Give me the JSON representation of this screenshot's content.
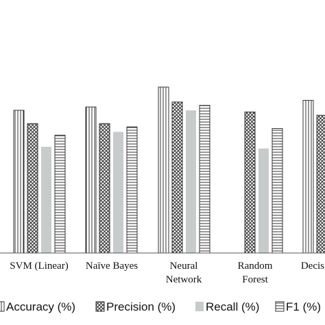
{
  "chart_data": {
    "type": "bar",
    "title": "",
    "xlabel": "",
    "ylabel": "",
    "categories": [
      "SVM (Linear)",
      "Naïve Bayes",
      "Neural Network",
      "Random Forest",
      "Decisi"
    ],
    "category_lines": [
      [
        "SVM (Linear)"
      ],
      [
        "Naïve Bayes"
      ],
      [
        "Neural",
        "Network"
      ],
      [
        "Random",
        "Forest"
      ],
      [
        "Decisi"
      ]
    ],
    "ylim": [
      0,
      100
    ],
    "grid": false,
    "legend_position": "bottom",
    "series": [
      {
        "name": "Accuracy (%)",
        "pattern": "vertical-lines",
        "color": "#ffffff",
        "values": [
          86,
          88,
          100,
          null,
          92
        ]
      },
      {
        "name": "Precision (%)",
        "pattern": "crosshatch",
        "color": "#ffffff",
        "values": [
          78,
          78,
          91,
          85,
          83
        ]
      },
      {
        "name": "Recall (%)",
        "pattern": "solid",
        "color": "#c8cbcb",
        "values": [
          64,
          73,
          86,
          63,
          null
        ]
      },
      {
        "name": "F1 (%)",
        "pattern": "horizontal-lines",
        "color": "#ffffff",
        "values": [
          71,
          76,
          89,
          75,
          null
        ]
      }
    ]
  }
}
